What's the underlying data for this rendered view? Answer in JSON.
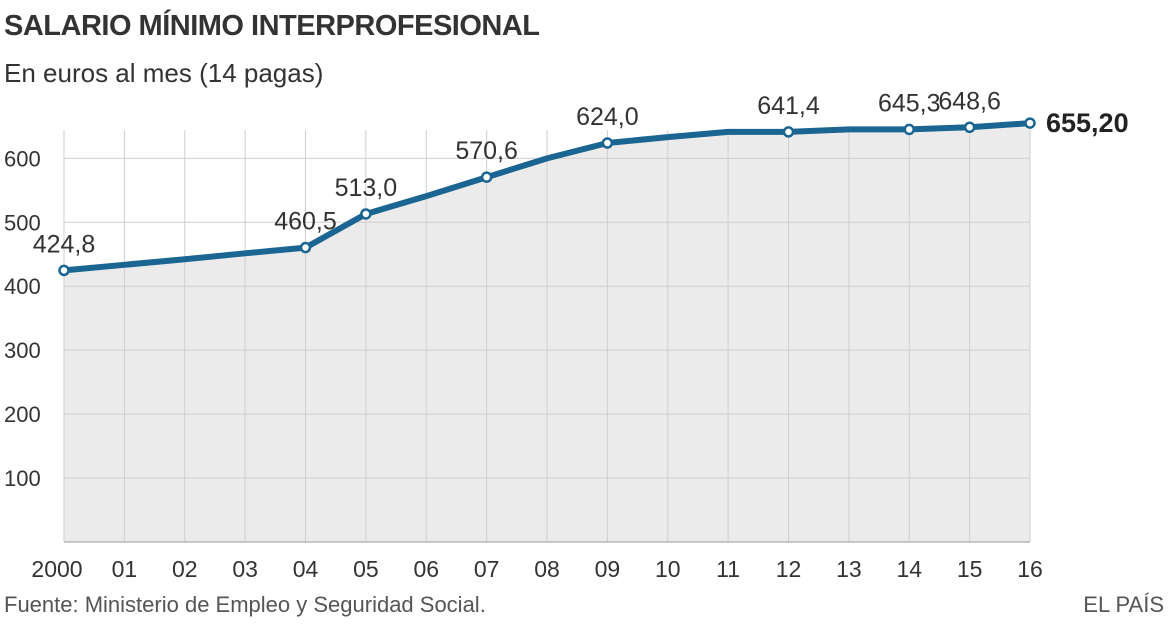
{
  "header": {
    "title": "SALARIO MÍNIMO INTERPROFESIONAL",
    "subtitle": "En euros al mes (14 pagas)"
  },
  "footer": {
    "source": "Fuente: Ministerio de Empleo y Seguridad Social.",
    "brand": "EL PAÍS"
  },
  "colors": {
    "line": "#1b6593",
    "area": "#ebebeb",
    "grid": "#cfcfcf",
    "text": "#333333"
  },
  "chart_data": {
    "type": "area",
    "title": "SALARIO MÍNIMO INTERPROFESIONAL",
    "subtitle": "En euros al mes (14 pagas)",
    "xlabel": "",
    "ylabel": "",
    "grid": true,
    "ylim": [
      0,
      700
    ],
    "y_ticks": [
      100,
      200,
      300,
      400,
      500,
      600
    ],
    "categories": [
      "2000",
      "01",
      "02",
      "03",
      "04",
      "05",
      "06",
      "07",
      "08",
      "09",
      "10",
      "11",
      "12",
      "13",
      "14",
      "15",
      "16"
    ],
    "values": [
      424.8,
      433.5,
      442.2,
      451.5,
      460.5,
      513.0,
      540.9,
      570.6,
      600.0,
      624.0,
      633.3,
      641.4,
      641.4,
      645.3,
      645.3,
      648.6,
      655.2
    ],
    "markers": [
      0,
      4,
      5,
      7,
      9,
      12,
      14,
      15,
      16
    ],
    "data_labels": [
      {
        "index": 0,
        "text": "424,8"
      },
      {
        "index": 4,
        "text": "460,5"
      },
      {
        "index": 5,
        "text": "513,0"
      },
      {
        "index": 7,
        "text": "570,6"
      },
      {
        "index": 9,
        "text": "624,0"
      },
      {
        "index": 12,
        "text": "641,4"
      },
      {
        "index": 14,
        "text": "645,3"
      },
      {
        "index": 15,
        "text": "648,6"
      },
      {
        "index": 16,
        "text": "655,20",
        "bold": true
      }
    ]
  }
}
